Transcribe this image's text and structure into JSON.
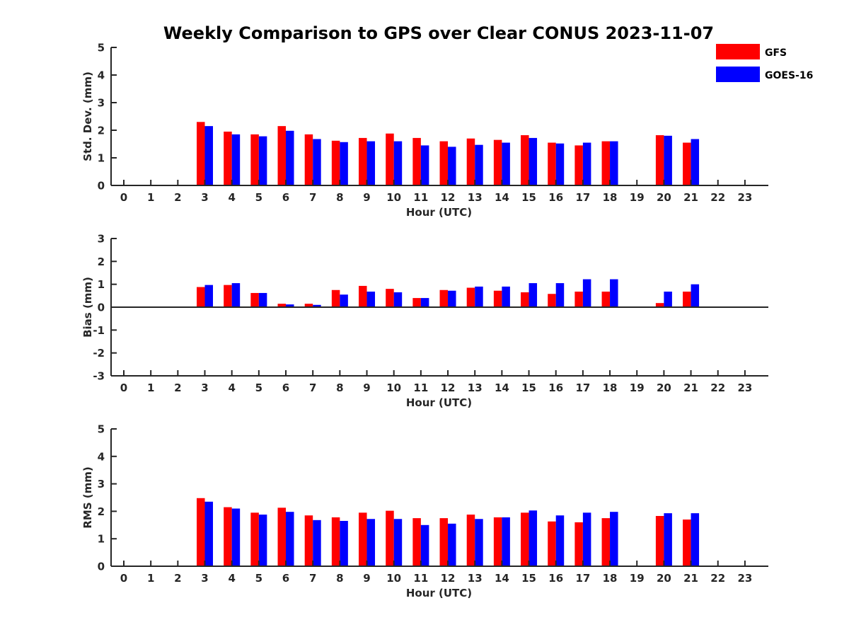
{
  "chart_data": {
    "title": "Weekly Comparison to GPS over Clear CONUS 2023-11-07",
    "legend": {
      "position": "top-right",
      "entries": [
        {
          "name": "GFS",
          "color": "#ff0000"
        },
        {
          "name": "GOES-16",
          "color": "#0000ff"
        }
      ]
    },
    "panels": [
      {
        "type": "bar",
        "xlabel": "Hour (UTC)",
        "ylabel": "Std. Dev. (mm)",
        "ylim": [
          0,
          5
        ],
        "yticks": [
          "0",
          "1",
          "2",
          "3",
          "4",
          "5"
        ],
        "categories": [
          "0",
          "1",
          "2",
          "3",
          "4",
          "5",
          "6",
          "7",
          "8",
          "9",
          "10",
          "11",
          "12",
          "13",
          "14",
          "15",
          "16",
          "17",
          "18",
          "19",
          "20",
          "21",
          "22",
          "23"
        ],
        "series": [
          {
            "name": "GFS",
            "color": "#ff0000",
            "values": [
              null,
              null,
              null,
              2.3,
              1.95,
              1.85,
              2.15,
              1.85,
              1.62,
              1.72,
              1.88,
              1.72,
              1.6,
              1.7,
              1.65,
              1.82,
              1.55,
              1.45,
              1.6,
              null,
              1.82,
              1.55,
              null,
              null
            ]
          },
          {
            "name": "GOES-16",
            "color": "#0000ff",
            "values": [
              null,
              null,
              null,
              2.15,
              1.85,
              1.78,
              1.98,
              1.68,
              1.57,
              1.6,
              1.6,
              1.45,
              1.4,
              1.47,
              1.55,
              1.72,
              1.52,
              1.55,
              1.6,
              null,
              1.8,
              1.68,
              null,
              null
            ]
          }
        ]
      },
      {
        "type": "bar",
        "xlabel": "Hour (UTC)",
        "ylabel": "Bias (mm)",
        "ylim": [
          -3,
          3
        ],
        "yticks": [
          "-3",
          "-2",
          "-1",
          "0",
          "1",
          "2",
          "3"
        ],
        "categories": [
          "0",
          "1",
          "2",
          "3",
          "4",
          "5",
          "6",
          "7",
          "8",
          "9",
          "10",
          "11",
          "12",
          "13",
          "14",
          "15",
          "16",
          "17",
          "18",
          "19",
          "20",
          "21",
          "22",
          "23"
        ],
        "series": [
          {
            "name": "GFS",
            "color": "#ff0000",
            "values": [
              null,
              null,
              null,
              0.88,
              0.97,
              0.62,
              0.15,
              0.15,
              0.75,
              0.93,
              0.8,
              0.4,
              0.75,
              0.85,
              0.72,
              0.65,
              0.58,
              0.68,
              0.68,
              null,
              0.18,
              0.68,
              null,
              null
            ]
          },
          {
            "name": "GOES-16",
            "color": "#0000ff",
            "values": [
              null,
              null,
              null,
              0.97,
              1.05,
              0.62,
              0.12,
              0.1,
              0.55,
              0.68,
              0.65,
              0.4,
              0.72,
              0.9,
              0.9,
              1.05,
              1.05,
              1.22,
              1.22,
              null,
              0.68,
              1.0,
              null,
              null
            ]
          }
        ]
      },
      {
        "type": "bar",
        "xlabel": "Hour (UTC)",
        "ylabel": "RMS (mm)",
        "ylim": [
          0,
          5
        ],
        "yticks": [
          "0",
          "1",
          "2",
          "3",
          "4",
          "5"
        ],
        "categories": [
          "0",
          "1",
          "2",
          "3",
          "4",
          "5",
          "6",
          "7",
          "8",
          "9",
          "10",
          "11",
          "12",
          "13",
          "14",
          "15",
          "16",
          "17",
          "18",
          "19",
          "20",
          "21",
          "22",
          "23"
        ],
        "series": [
          {
            "name": "GFS",
            "color": "#ff0000",
            "values": [
              null,
              null,
              null,
              2.48,
              2.15,
              1.95,
              2.13,
              1.85,
              1.78,
              1.95,
              2.02,
              1.75,
              1.75,
              1.88,
              1.78,
              1.95,
              1.63,
              1.6,
              1.75,
              null,
              1.83,
              1.7,
              null,
              null
            ]
          },
          {
            "name": "GOES-16",
            "color": "#0000ff",
            "values": [
              null,
              null,
              null,
              2.35,
              2.1,
              1.88,
              1.98,
              1.68,
              1.65,
              1.72,
              1.72,
              1.5,
              1.55,
              1.72,
              1.78,
              2.03,
              1.85,
              1.95,
              1.98,
              null,
              1.93,
              1.93,
              null,
              null
            ]
          }
        ]
      }
    ]
  }
}
